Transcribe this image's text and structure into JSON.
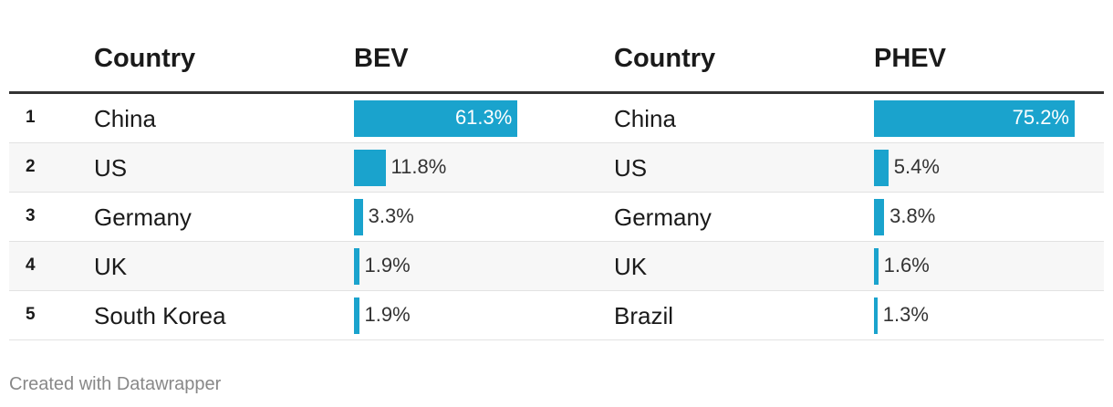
{
  "chart_data": {
    "type": "table",
    "columns": [
      "",
      "Country",
      "BEV",
      "Country",
      "PHEV"
    ],
    "rows": [
      {
        "rank": "1",
        "bev_country": "China",
        "bev": 61.3,
        "bev_label": "61.3%",
        "phev_country": "China",
        "phev": 75.2,
        "phev_label": "75.2%"
      },
      {
        "rank": "2",
        "bev_country": "US",
        "bev": 11.8,
        "bev_label": "11.8%",
        "phev_country": "US",
        "phev": 5.4,
        "phev_label": "5.4%"
      },
      {
        "rank": "3",
        "bev_country": "Germany",
        "bev": 3.3,
        "bev_label": "3.3%",
        "phev_country": "Germany",
        "phev": 3.8,
        "phev_label": "3.8%"
      },
      {
        "rank": "4",
        "bev_country": "UK",
        "bev": 1.9,
        "bev_label": "1.9%",
        "phev_country": "UK",
        "phev": 1.6,
        "phev_label": "1.6%"
      },
      {
        "rank": "5",
        "bev_country": "South Korea",
        "bev": 1.9,
        "bev_label": "1.9%",
        "phev_country": "Brazil",
        "phev": 1.3,
        "phev_label": "1.3%"
      }
    ],
    "bar_color": "#1aa3cd"
  },
  "footer": "Created with Datawrapper"
}
